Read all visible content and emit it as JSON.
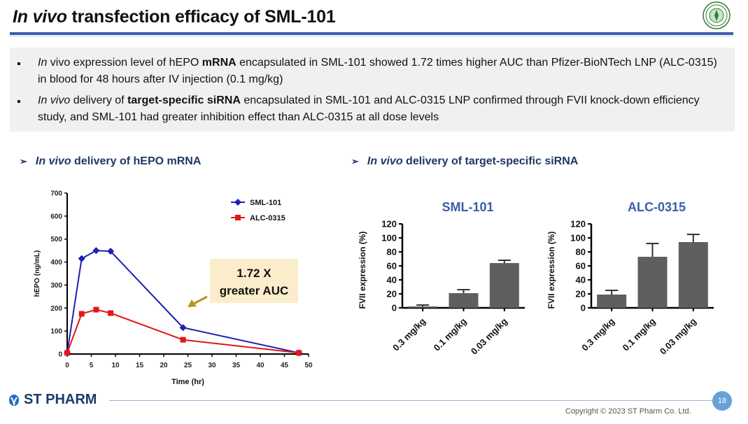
{
  "title": {
    "em": "In vivo",
    "rest": " transfection efficacy of SML-101"
  },
  "summary": {
    "bullet_char": "▪",
    "b1": {
      "em": "In",
      "t1": " vivo expression level of hEPO ",
      "b": "mRNA",
      "t2": " encapsulated in SML-101 showed 1.72 times higher AUC than Pfizer-BioNTech LNP (ALC-0315) in blood for 48 hours after IV injection (0.1 mg/kg)"
    },
    "b2": {
      "em": "In vivo",
      "t1": " delivery of ",
      "b": "target-specific siRNA",
      "t2": " encapsulated in SML-101 and ALC-0315 LNP confirmed through FVII knock-down efficiency study, and SML-101 had greater inhibition effect than ALC-0315 at all dose levels"
    }
  },
  "sections": {
    "left": {
      "arrow": "➢",
      "em": "In vivo",
      "rest": " delivery of hEPO mRNA"
    },
    "right": {
      "arrow": "➢",
      "em": "In vivo",
      "rest": " delivery of target-specific siRNA"
    }
  },
  "annotation": {
    "line1": "1.72 X",
    "line2": "greater AUC"
  },
  "colors": {
    "sml": "#1f1fb4",
    "alc": "#e01818",
    "bar": "#5f5f5f",
    "title_blue": "#3b5fa8",
    "callout_bg": "#fbeccb",
    "callout_arrow": "#b8951c"
  },
  "chart_data": [
    {
      "type": "line",
      "xlabel": "Time (hr)",
      "ylabel": "hEPO (ng/mL)",
      "xlim": [
        0,
        50
      ],
      "ylim": [
        0,
        700
      ],
      "xticks": [
        "0",
        "5",
        "10",
        "15",
        "20",
        "25",
        "30",
        "35",
        "40",
        "45",
        "50"
      ],
      "yticks": [
        "0",
        "100",
        "200",
        "300",
        "400",
        "500",
        "600",
        "700"
      ],
      "legend": "top-right",
      "series": [
        {
          "name": "SML-101",
          "marker": "diamond",
          "x": [
            0,
            3,
            6,
            9,
            24,
            48
          ],
          "y": [
            5,
            415,
            450,
            447,
            115,
            5
          ]
        },
        {
          "name": "ALC-0315",
          "marker": "square",
          "x": [
            0,
            3,
            6,
            9,
            24,
            48
          ],
          "y": [
            5,
            175,
            193,
            178,
            62,
            5
          ]
        }
      ]
    },
    {
      "type": "bar",
      "title": "SML-101",
      "ylabel": "FVII expression (%)",
      "ylim": [
        0,
        120
      ],
      "yticks": [
        "0",
        "20",
        "40",
        "60",
        "80",
        "100",
        "120"
      ],
      "categories": [
        "0.3 mg/kg",
        "0.1 mg/kg",
        "0.03 mg/kg"
      ],
      "values": [
        2,
        21,
        64
      ],
      "errors": [
        2,
        5,
        4
      ]
    },
    {
      "type": "bar",
      "title": "ALC-0315",
      "ylabel": "FVII expression (%)",
      "ylim": [
        0,
        120
      ],
      "yticks": [
        "0",
        "20",
        "40",
        "60",
        "80",
        "100",
        "120"
      ],
      "categories": [
        "0.3 mg/kg",
        "0.1 mg/kg",
        "0.03 mg/kg"
      ],
      "values": [
        19,
        73,
        94
      ],
      "errors": [
        6,
        19,
        11
      ]
    }
  ],
  "footer": {
    "logo": "ST PHARM",
    "page": "18",
    "copyright": "Copyright © 2023 ST Pharm Co. Ltd."
  }
}
